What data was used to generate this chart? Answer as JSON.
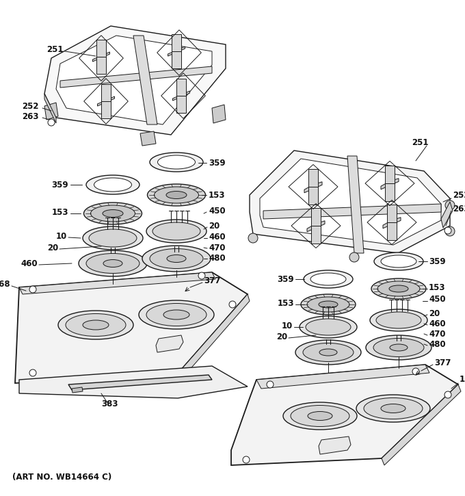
{
  "art_no": "(ART NO. WB14664 C)",
  "bg_color": "#ffffff",
  "line_color": "#1a1a1a",
  "figsize": [
    6.8,
    7.25
  ],
  "dpi": 100
}
